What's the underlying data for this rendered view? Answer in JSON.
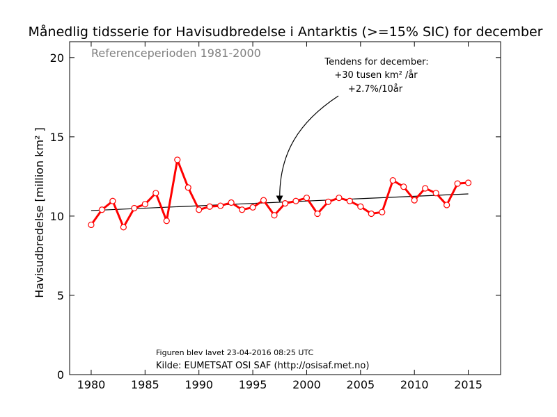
{
  "chart_data": {
    "type": "line",
    "title": "Månedlig tidsserie for Havisudbredelse i Antarktis (>=15% SIC) for december",
    "reference_text": "Referenceperioden 1981-2000",
    "ylabel": "Havisudbredelse [million km² ]",
    "xlabel": "",
    "xlim": [
      1978,
      2018
    ],
    "ylim": [
      0,
      21
    ],
    "x_ticks": [
      1980,
      1985,
      1990,
      1995,
      2000,
      2005,
      2010,
      2015
    ],
    "y_ticks": [
      0,
      5,
      10,
      15,
      20
    ],
    "grid": false,
    "series": [
      {
        "color": "#ff0000",
        "x": [
          1980,
          1981,
          1982,
          1983,
          1984,
          1985,
          1986,
          1987,
          1988,
          1989,
          1990,
          1991,
          1992,
          1993,
          1994,
          1995,
          1996,
          1997,
          1998,
          1999,
          2000,
          2001,
          2002,
          2003,
          2004,
          2005,
          2006,
          2007,
          2008,
          2009,
          2010,
          2011,
          2012,
          2013,
          2014,
          2015
        ],
        "values": [
          9.45,
          10.4,
          10.95,
          9.3,
          10.5,
          10.75,
          11.45,
          9.7,
          13.55,
          11.8,
          10.4,
          10.6,
          10.65,
          10.85,
          10.4,
          10.55,
          11.0,
          10.05,
          10.8,
          10.95,
          11.15,
          10.15,
          10.9,
          11.15,
          10.95,
          10.6,
          10.15,
          10.25,
          12.25,
          11.85,
          11.0,
          11.75,
          11.45,
          10.7,
          12.05,
          12.1
        ]
      }
    ],
    "trend": {
      "color": "#000000",
      "x": [
        1980,
        2015
      ],
      "values": [
        10.35,
        11.4
      ]
    },
    "annotation": {
      "lines": [
        "Tendens for december:",
        "+30 tusen km² /år",
        "+2.7%/10år"
      ],
      "arrow_target": {
        "x": 1997.5,
        "y": 10.9
      }
    },
    "footer": {
      "created": "Figuren blev lavet 23-04-2016 08:25 UTC",
      "source": "Kilde: EUMETSAT OSI SAF (http://osisaf.met.no)"
    }
  }
}
